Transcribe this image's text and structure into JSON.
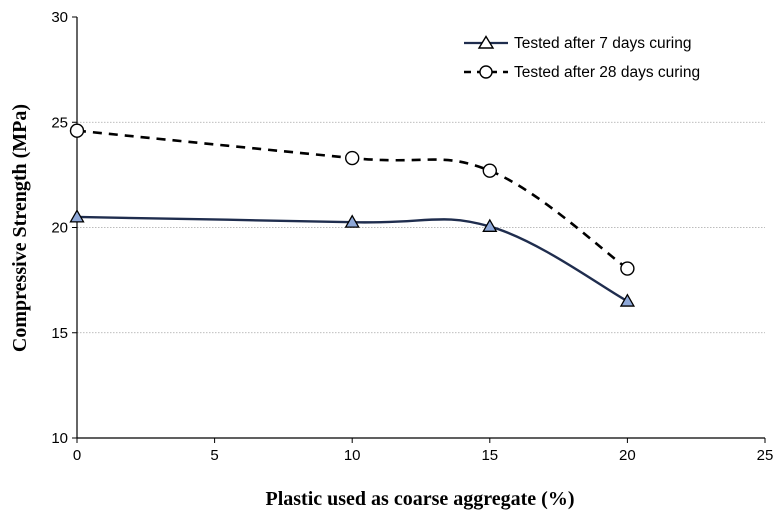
{
  "chart_data": {
    "type": "line",
    "title": "",
    "xlabel": "Plastic used as coarse aggregate (%)",
    "ylabel": "Compressive Strength (MPa)",
    "xlim": [
      0,
      25
    ],
    "ylim": [
      10,
      30
    ],
    "xticks": [
      "0",
      "5",
      "10",
      "15",
      "20",
      "25"
    ],
    "yticks": [
      "10",
      "15",
      "20",
      "25",
      "30"
    ],
    "grid": "horizontal",
    "legend_position": "top-right",
    "series": [
      {
        "name": "Tested after 7 days curing",
        "style": "solid",
        "marker": "triangle",
        "color": "#1f2d4e",
        "x": [
          0,
          10,
          15,
          20
        ],
        "y": [
          20.5,
          20.25,
          20.05,
          16.5
        ]
      },
      {
        "name": "Tested after 28 days curing",
        "style": "dashed",
        "marker": "circle",
        "color": "#000000",
        "x": [
          0,
          10,
          15,
          20
        ],
        "y": [
          24.6,
          23.3,
          22.7,
          18.05
        ]
      }
    ]
  },
  "colors": {
    "axis": "#000000",
    "grid": "#a6a6a6",
    "triangle_fill": "#8ea8d8"
  }
}
